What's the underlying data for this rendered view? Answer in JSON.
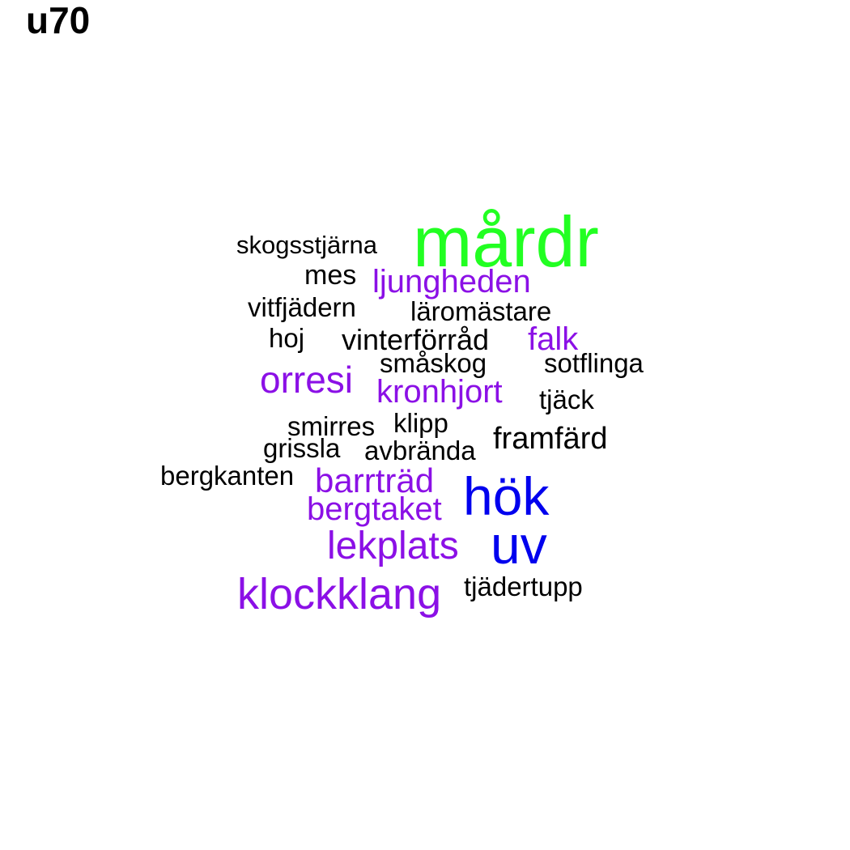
{
  "title": "u70",
  "colors": {
    "green": "#22ff22",
    "purple": "#8b10e6",
    "blue": "#0000ee",
    "black": "#000000"
  },
  "words": [
    {
      "text": "mårdr",
      "color": "green"
    },
    {
      "text": "skogsstjärna",
      "color": "black"
    },
    {
      "text": "mes",
      "color": "black"
    },
    {
      "text": "ljungheden",
      "color": "purple"
    },
    {
      "text": "vitfjädern",
      "color": "black"
    },
    {
      "text": "läromästare",
      "color": "black"
    },
    {
      "text": "hoj",
      "color": "black"
    },
    {
      "text": "vinterförråd",
      "color": "black"
    },
    {
      "text": "falk",
      "color": "purple"
    },
    {
      "text": "småskog",
      "color": "black"
    },
    {
      "text": "sotflinga",
      "color": "black"
    },
    {
      "text": "orresi",
      "color": "purple"
    },
    {
      "text": "kronhjort",
      "color": "purple"
    },
    {
      "text": "tjäck",
      "color": "black"
    },
    {
      "text": "smirres",
      "color": "black"
    },
    {
      "text": "klipp",
      "color": "black"
    },
    {
      "text": "framfärd",
      "color": "black"
    },
    {
      "text": "grissla",
      "color": "black"
    },
    {
      "text": "avbrända",
      "color": "black"
    },
    {
      "text": "bergkanten",
      "color": "black"
    },
    {
      "text": "barrträd",
      "color": "purple"
    },
    {
      "text": "hök",
      "color": "blue"
    },
    {
      "text": "bergtaket",
      "color": "purple"
    },
    {
      "text": "lekplats",
      "color": "purple"
    },
    {
      "text": "uv",
      "color": "blue"
    },
    {
      "text": "klockklang",
      "color": "purple"
    },
    {
      "text": "tjädertupp",
      "color": "black"
    }
  ]
}
